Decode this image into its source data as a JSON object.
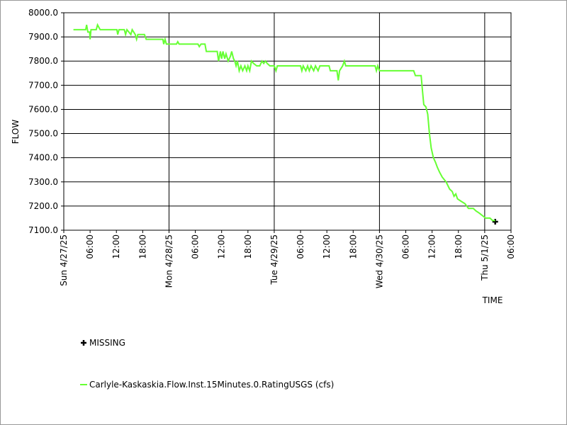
{
  "chart_data": {
    "type": "line",
    "x_label": "TIME",
    "y_label": "FLOW",
    "xlim": [
      0,
      102
    ],
    "ylim": [
      7100,
      8000
    ],
    "xticks": [
      {
        "value": 0,
        "label": "Sun 4/27/25"
      },
      {
        "value": 6,
        "label": "06:00"
      },
      {
        "value": 12,
        "label": "12:00"
      },
      {
        "value": 18,
        "label": "18:00"
      },
      {
        "value": 24,
        "label": "Mon 4/28/25"
      },
      {
        "value": 30,
        "label": "06:00"
      },
      {
        "value": 36,
        "label": "12:00"
      },
      {
        "value": 42,
        "label": "18:00"
      },
      {
        "value": 48,
        "label": "Tue 4/29/25"
      },
      {
        "value": 54,
        "label": "06:00"
      },
      {
        "value": 60,
        "label": "12:00"
      },
      {
        "value": 66,
        "label": "18:00"
      },
      {
        "value": 72,
        "label": "Wed 4/30/25"
      },
      {
        "value": 78,
        "label": "06:00"
      },
      {
        "value": 84,
        "label": "12:00"
      },
      {
        "value": 90,
        "label": "18:00"
      },
      {
        "value": 96,
        "label": "Thu 5/1/25"
      },
      {
        "value": 102,
        "label": "06:00"
      }
    ],
    "yticks": [
      {
        "value": 7100,
        "label": "7100.0"
      },
      {
        "value": 7200,
        "label": "7200.0"
      },
      {
        "value": 7300,
        "label": "7300.0"
      },
      {
        "value": 7400,
        "label": "7400.0"
      },
      {
        "value": 7500,
        "label": "7500.0"
      },
      {
        "value": 7600,
        "label": "7600.0"
      },
      {
        "value": 7700,
        "label": "7700.0"
      },
      {
        "value": 7800,
        "label": "7800.0"
      },
      {
        "value": 7900,
        "label": "7900.0"
      },
      {
        "value": 8000,
        "label": "8000.0"
      }
    ],
    "grid": true,
    "legend": "bottom",
    "series": [
      {
        "name": "MISSING",
        "color": "#000000",
        "marker": "plus",
        "x": [
          98.4
        ],
        "values": [
          7135
        ]
      },
      {
        "name": "Carlyle-Kaskaskia.Flow.Inst.15Minutes.0.RatingUSGS (cfs)",
        "color": "#66ff33",
        "x": [
          2.2,
          5.0,
          5.2,
          5.5,
          5.9,
          6.0,
          6.2,
          7.4,
          7.7,
          8.3,
          12.1,
          12.3,
          12.6,
          13.8,
          14.1,
          14.4,
          15.3,
          15.6,
          16.3,
          16.6,
          16.9,
          18.4,
          18.8,
          22.6,
          22.8,
          23.1,
          23.4,
          25.7,
          26.0,
          26.3,
          30.6,
          30.9,
          31.3,
          32.2,
          32.5,
          35.0,
          35.3,
          35.7,
          36.0,
          36.3,
          36.7,
          37.0,
          37.5,
          38.0,
          38.3,
          38.7,
          39.0,
          39.3,
          39.6,
          40.0,
          40.4,
          40.8,
          41.3,
          41.7,
          42.0,
          42.4,
          42.8,
          43.3,
          44.0,
          44.7,
          45.2,
          45.6,
          46.0,
          46.4,
          47.0,
          48.0,
          48.4,
          48.7,
          54.0,
          54.3,
          54.6,
          55.2,
          55.6,
          56.0,
          56.4,
          57.0,
          57.4,
          58.0,
          58.4,
          59.0,
          60.5,
          60.8,
          62.3,
          62.6,
          62.9,
          63.6,
          64.0,
          64.3,
          71.0,
          71.3,
          71.6,
          72.0,
          79.8,
          80.2,
          81.5,
          81.8,
          82.1,
          82.6,
          83.0,
          83.4,
          83.8,
          84.3,
          84.8,
          85.2,
          85.7,
          86.3,
          87.2,
          88.0,
          88.6,
          89.0,
          89.4,
          89.8,
          90.6,
          91.5,
          92.3,
          93.4,
          94.0,
          94.8,
          95.5,
          96.2,
          97.2,
          97.8,
          98.4
        ],
        "values": [
          7930,
          7930,
          7950,
          7920,
          7920,
          7890,
          7930,
          7930,
          7950,
          7930,
          7930,
          7910,
          7930,
          7930,
          7910,
          7930,
          7910,
          7930,
          7910,
          7890,
          7910,
          7910,
          7890,
          7890,
          7870,
          7890,
          7870,
          7870,
          7880,
          7870,
          7870,
          7860,
          7870,
          7870,
          7840,
          7840,
          7800,
          7840,
          7810,
          7840,
          7810,
          7830,
          7800,
          7820,
          7840,
          7810,
          7800,
          7780,
          7800,
          7760,
          7780,
          7760,
          7780,
          7760,
          7780,
          7760,
          7800,
          7790,
          7780,
          7780,
          7800,
          7790,
          7800,
          7790,
          7780,
          7780,
          7760,
          7780,
          7780,
          7760,
          7780,
          7760,
          7780,
          7760,
          7780,
          7760,
          7780,
          7760,
          7780,
          7780,
          7780,
          7760,
          7760,
          7720,
          7760,
          7780,
          7800,
          7780,
          7780,
          7760,
          7780,
          7760,
          7760,
          7740,
          7740,
          7680,
          7620,
          7610,
          7580,
          7500,
          7440,
          7400,
          7380,
          7360,
          7340,
          7320,
          7300,
          7270,
          7260,
          7240,
          7250,
          7230,
          7220,
          7210,
          7190,
          7190,
          7180,
          7170,
          7160,
          7150,
          7150,
          7140,
          7140
        ]
      }
    ]
  }
}
